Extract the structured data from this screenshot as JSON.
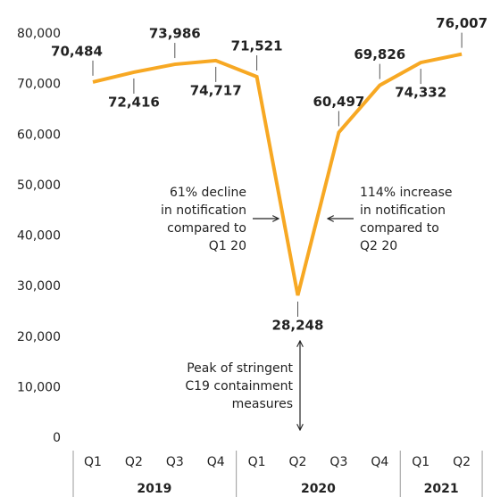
{
  "chart_data": {
    "type": "line",
    "groups": [
      {
        "name": "2019",
        "categories": [
          "Q1",
          "Q2",
          "Q3",
          "Q4"
        ]
      },
      {
        "name": "2020",
        "categories": [
          "Q1",
          "Q2",
          "Q3",
          "Q4"
        ]
      },
      {
        "name": "2021",
        "categories": [
          "Q1",
          "Q2"
        ]
      }
    ],
    "values": [
      70484,
      72416,
      73986,
      74717,
      71521,
      28248,
      60497,
      69826,
      74332,
      76007
    ],
    "value_labels": [
      "70,484",
      "72,416",
      "73,986",
      "74,717",
      "71,521",
      "28,248",
      "60,497",
      "69,826",
      "74,332",
      "76,007"
    ],
    "color": "#f7a823",
    "ylim": [
      0,
      80000
    ],
    "yticks": [
      0,
      {
        "value": 10000,
        "label": "10,000"
      },
      {
        "value": 20000,
        "label": "20,000"
      },
      {
        "value": 30000,
        "label": "30,000"
      },
      {
        "value": 40000,
        "label": "40,000"
      },
      {
        "value": 50000,
        "label": "50,000"
      },
      {
        "value": 60000,
        "label": "60,000"
      },
      {
        "value": 70000,
        "label": "70,000"
      },
      {
        "value": 80000,
        "label": "80,000"
      }
    ],
    "annotations": [
      [
        "61% decline",
        "in notification",
        "compared to",
        "Q1 20"
      ],
      [
        "114% increase",
        "in notification",
        "compared to",
        "Q2 20"
      ],
      [
        "Peak of stringent",
        "C19 containment",
        "measures"
      ]
    ]
  }
}
